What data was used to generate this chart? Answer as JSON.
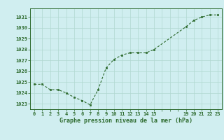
{
  "x": [
    0,
    1,
    2,
    3,
    4,
    5,
    6,
    7,
    8,
    9,
    10,
    11,
    12,
    13,
    14,
    15,
    19,
    20,
    21,
    22,
    23
  ],
  "y": [
    1024.8,
    1024.8,
    1024.3,
    1024.3,
    1024.0,
    1023.6,
    1023.3,
    1022.9,
    1024.3,
    1026.3,
    1027.1,
    1027.5,
    1027.7,
    1027.7,
    1027.7,
    1028.0,
    1030.1,
    1030.7,
    1031.0,
    1031.2,
    1031.2
  ],
  "line_color": "#2d6a2d",
  "marker_color": "#2d6a2d",
  "bg_color": "#d0eef0",
  "grid_color": "#b0d8d0",
  "xlabel": "Graphe pression niveau de la mer (hPa)",
  "xlabel_color": "#2d6a2d",
  "tick_color": "#2d6a2d",
  "xtick_labels": [
    "0",
    "1",
    "2",
    "3",
    "4",
    "5",
    "6",
    "7",
    "8",
    "9",
    "10",
    "11",
    "12",
    "13",
    "14",
    "15",
    "",
    "",
    "",
    "19",
    "20",
    "21",
    "22",
    "23"
  ],
  "xtick_positions": [
    0,
    1,
    2,
    3,
    4,
    5,
    6,
    7,
    8,
    9,
    10,
    11,
    12,
    13,
    14,
    15,
    16,
    17,
    18,
    19,
    20,
    21,
    22,
    23
  ],
  "ylim": [
    1022.5,
    1031.8
  ],
  "xlim": [
    -0.5,
    23.5
  ],
  "yticks": [
    1023,
    1024,
    1025,
    1026,
    1027,
    1028,
    1029,
    1030,
    1031
  ],
  "figsize": [
    3.2,
    2.0
  ],
  "dpi": 100
}
